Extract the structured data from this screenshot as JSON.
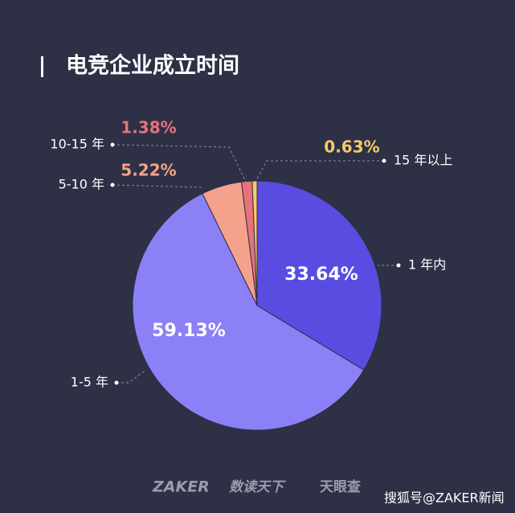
{
  "chart_data": {
    "type": "pie",
    "title": "电竞企业成立时间",
    "categories": [
      "1 年内",
      "1-5 年",
      "5-10 年",
      "10-15 年",
      "15 年以上"
    ],
    "values": [
      33.64,
      59.13,
      5.22,
      1.38,
      0.63
    ],
    "value_labels": [
      "33.64%",
      "59.13%",
      "5.22%",
      "1.38%",
      "0.63%"
    ],
    "colors": [
      "#5a4ce0",
      "#8c80f7",
      "#f5a28c",
      "#e8717c",
      "#f5c96c"
    ]
  },
  "watermark": {
    "brand": "ZAKER",
    "partner1": "数读天下",
    "partner2": "天眼查",
    "source": "搜狐号@ZAKER新闻"
  }
}
